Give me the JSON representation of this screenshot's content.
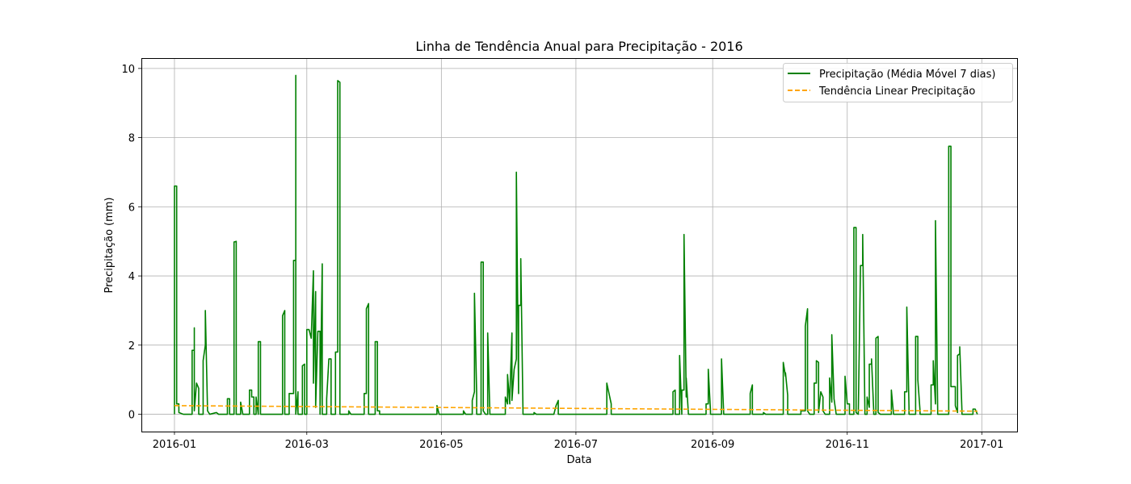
{
  "chart_data": {
    "type": "line",
    "title": "Linha de Tendência Anual para Precipitação - 2016",
    "xlabel": "Data",
    "ylabel": "Precipitação (mm)",
    "xlim": [
      "2015-12-17",
      "2017-01-17"
    ],
    "ylim": [
      -0.5,
      10.3
    ],
    "grid": true,
    "legend_position": "top-right",
    "x_ticks": [
      "2016-01-01",
      "2016-03-01",
      "2016-05-01",
      "2016-07-01",
      "2016-09-01",
      "2016-11-01",
      "2017-01-01"
    ],
    "x_tick_labels": [
      "2016-01",
      "2016-03",
      "2016-05",
      "2016-07",
      "2016-09",
      "2016-11",
      "2017-01"
    ],
    "y_ticks": [
      0,
      2,
      4,
      6,
      8,
      10
    ],
    "y_tick_labels": [
      "0",
      "2",
      "4",
      "6",
      "8",
      "10"
    ],
    "series": [
      {
        "name": "Precipitação (Média Móvel 7 dias)",
        "color": "#008000",
        "style": "solid",
        "points": [
          [
            "2016-01-01",
            0
          ],
          [
            "2016-01-01",
            6.6
          ],
          [
            "2016-01-02",
            6.6
          ],
          [
            "2016-01-02",
            0.3
          ],
          [
            "2016-01-03",
            0.3
          ],
          [
            "2016-01-03",
            0.05
          ],
          [
            "2016-01-05",
            0
          ],
          [
            "2016-01-09",
            0
          ],
          [
            "2016-01-09",
            1.85
          ],
          [
            "2016-01-10",
            1.85
          ],
          [
            "2016-01-10",
            2.5
          ],
          [
            "2016-01-10",
            0.1
          ],
          [
            "2016-01-11",
            0.9
          ],
          [
            "2016-01-12",
            0.75
          ],
          [
            "2016-01-12",
            0
          ],
          [
            "2016-01-14",
            0
          ],
          [
            "2016-01-14",
            1.55
          ],
          [
            "2016-01-15",
            2.0
          ],
          [
            "2016-01-15",
            3.0
          ],
          [
            "2016-01-16",
            0.1
          ],
          [
            "2016-01-17",
            0
          ],
          [
            "2016-01-20",
            0.05
          ],
          [
            "2016-01-21",
            0
          ],
          [
            "2016-01-25",
            0
          ],
          [
            "2016-01-25",
            0.45
          ],
          [
            "2016-01-26",
            0.45
          ],
          [
            "2016-01-26",
            0
          ],
          [
            "2016-01-28",
            0
          ],
          [
            "2016-01-28",
            4.98
          ],
          [
            "2016-01-29",
            5.0
          ],
          [
            "2016-01-29",
            0
          ],
          [
            "2016-01-31",
            0
          ],
          [
            "2016-01-31",
            0.35
          ],
          [
            "2016-02-01",
            0
          ],
          [
            "2016-02-04",
            0
          ],
          [
            "2016-02-04",
            0.7
          ],
          [
            "2016-02-05",
            0.7
          ],
          [
            "2016-02-05",
            0.5
          ],
          [
            "2016-02-06",
            0.5
          ],
          [
            "2016-02-06",
            0
          ],
          [
            "2016-02-07",
            0
          ],
          [
            "2016-02-07",
            0.5
          ],
          [
            "2016-02-08",
            0
          ],
          [
            "2016-02-08",
            2.1
          ],
          [
            "2016-02-09",
            2.1
          ],
          [
            "2016-02-09",
            0
          ],
          [
            "2016-02-19",
            0
          ],
          [
            "2016-02-19",
            2.85
          ],
          [
            "2016-02-20",
            3.0
          ],
          [
            "2016-02-20",
            0
          ],
          [
            "2016-02-22",
            0
          ],
          [
            "2016-02-22",
            0.6
          ],
          [
            "2016-02-24",
            0.6
          ],
          [
            "2016-02-24",
            4.45
          ],
          [
            "2016-02-25",
            4.45
          ],
          [
            "2016-02-25",
            9.8
          ],
          [
            "2016-02-25",
            0
          ],
          [
            "2016-02-26",
            0.65
          ],
          [
            "2016-02-26",
            0
          ],
          [
            "2016-02-28",
            0
          ],
          [
            "2016-02-28",
            1.4
          ],
          [
            "2016-02-29",
            1.45
          ],
          [
            "2016-02-29",
            0
          ],
          [
            "2016-03-01",
            0
          ],
          [
            "2016-03-01",
            2.45
          ],
          [
            "2016-03-02",
            2.45
          ],
          [
            "2016-03-03",
            2.2
          ],
          [
            "2016-03-04",
            4.15
          ],
          [
            "2016-03-04",
            0.9
          ],
          [
            "2016-03-05",
            3.55
          ],
          [
            "2016-03-05",
            0.2
          ],
          [
            "2016-03-06",
            2.4
          ],
          [
            "2016-03-07",
            2.4
          ],
          [
            "2016-03-07",
            0
          ],
          [
            "2016-03-08",
            4.35
          ],
          [
            "2016-03-08",
            0
          ],
          [
            "2016-03-10",
            0
          ],
          [
            "2016-03-10",
            0.45
          ],
          [
            "2016-03-11",
            1.6
          ],
          [
            "2016-03-12",
            1.6
          ],
          [
            "2016-03-12",
            0
          ],
          [
            "2016-03-14",
            0
          ],
          [
            "2016-03-14",
            1.8
          ],
          [
            "2016-03-15",
            1.8
          ],
          [
            "2016-03-15",
            9.65
          ],
          [
            "2016-03-16",
            9.6
          ],
          [
            "2016-03-16",
            0
          ],
          [
            "2016-03-20",
            0
          ],
          [
            "2016-03-20",
            0.1
          ],
          [
            "2016-03-21",
            0
          ],
          [
            "2016-03-27",
            0
          ],
          [
            "2016-03-27",
            0.6
          ],
          [
            "2016-03-28",
            0.6
          ],
          [
            "2016-03-28",
            3.05
          ],
          [
            "2016-03-29",
            3.2
          ],
          [
            "2016-03-29",
            0
          ],
          [
            "2016-04-01",
            0
          ],
          [
            "2016-04-01",
            2.1
          ],
          [
            "2016-04-02",
            2.1
          ],
          [
            "2016-04-02",
            0.1
          ],
          [
            "2016-04-03",
            0.1
          ],
          [
            "2016-04-03",
            0
          ],
          [
            "2016-04-29",
            0
          ],
          [
            "2016-04-29",
            0.25
          ],
          [
            "2016-04-30",
            0
          ],
          [
            "2016-05-11",
            0
          ],
          [
            "2016-05-11",
            0.1
          ],
          [
            "2016-05-12",
            0
          ],
          [
            "2016-05-15",
            0
          ],
          [
            "2016-05-15",
            0.4
          ],
          [
            "2016-05-16",
            0.65
          ],
          [
            "2016-05-16",
            3.5
          ],
          [
            "2016-05-17",
            0.6
          ],
          [
            "2016-05-17",
            0
          ],
          [
            "2016-05-19",
            0
          ],
          [
            "2016-05-19",
            4.4
          ],
          [
            "2016-05-20",
            4.4
          ],
          [
            "2016-05-20",
            0.1
          ],
          [
            "2016-05-21",
            0
          ],
          [
            "2016-05-22",
            0
          ],
          [
            "2016-05-22",
            2.35
          ],
          [
            "2016-05-23",
            0
          ],
          [
            "2016-05-30",
            0
          ],
          [
            "2016-05-30",
            0.5
          ],
          [
            "2016-05-31",
            0.3
          ],
          [
            "2016-05-31",
            1.15
          ],
          [
            "2016-06-01",
            0.3
          ],
          [
            "2016-06-01",
            0.45
          ],
          [
            "2016-06-02",
            2.35
          ],
          [
            "2016-06-02",
            0.4
          ],
          [
            "2016-06-03",
            1.3
          ],
          [
            "2016-06-04",
            1.6
          ],
          [
            "2016-06-04",
            7.0
          ],
          [
            "2016-06-05",
            0.6
          ],
          [
            "2016-06-05",
            3.15
          ],
          [
            "2016-06-06",
            3.15
          ],
          [
            "2016-06-06",
            4.5
          ],
          [
            "2016-06-07",
            0.1
          ],
          [
            "2016-06-07",
            0
          ],
          [
            "2016-06-12",
            0
          ],
          [
            "2016-06-12",
            0.05
          ],
          [
            "2016-06-13",
            0
          ],
          [
            "2016-06-21",
            0
          ],
          [
            "2016-06-22",
            0.25
          ],
          [
            "2016-06-23",
            0.4
          ],
          [
            "2016-06-23",
            0
          ],
          [
            "2016-07-15",
            0
          ],
          [
            "2016-07-15",
            0.9
          ],
          [
            "2016-07-16",
            0.6
          ],
          [
            "2016-07-17",
            0.3
          ],
          [
            "2016-07-17",
            0
          ],
          [
            "2016-08-10",
            0
          ],
          [
            "2016-08-14",
            0
          ],
          [
            "2016-08-14",
            0.65
          ],
          [
            "2016-08-15",
            0.7
          ],
          [
            "2016-08-15",
            0
          ],
          [
            "2016-08-17",
            0
          ],
          [
            "2016-08-17",
            1.7
          ],
          [
            "2016-08-18",
            0
          ],
          [
            "2016-08-18",
            0.7
          ],
          [
            "2016-08-19",
            0.7
          ],
          [
            "2016-08-19",
            5.2
          ],
          [
            "2016-08-20",
            0.5
          ],
          [
            "2016-08-20",
            1.05
          ],
          [
            "2016-08-21",
            0
          ],
          [
            "2016-08-29",
            0
          ],
          [
            "2016-08-29",
            0.3
          ],
          [
            "2016-08-30",
            0.3
          ],
          [
            "2016-08-30",
            1.3
          ],
          [
            "2016-08-31",
            0.1
          ],
          [
            "2016-08-31",
            0
          ],
          [
            "2016-09-05",
            0
          ],
          [
            "2016-09-05",
            1.6
          ],
          [
            "2016-09-06",
            0
          ],
          [
            "2016-09-18",
            0
          ],
          [
            "2016-09-18",
            0.6
          ],
          [
            "2016-09-19",
            0.85
          ],
          [
            "2016-09-19",
            0
          ],
          [
            "2016-09-24",
            0
          ],
          [
            "2016-09-24",
            0.05
          ],
          [
            "2016-09-25",
            0
          ],
          [
            "2016-10-03",
            0
          ],
          [
            "2016-10-03",
            1.5
          ],
          [
            "2016-10-04",
            1.1
          ],
          [
            "2016-10-04",
            1.2
          ],
          [
            "2016-10-05",
            0.55
          ],
          [
            "2016-10-05",
            0
          ],
          [
            "2016-10-11",
            0
          ],
          [
            "2016-10-11",
            0.1
          ],
          [
            "2016-10-13",
            0.1
          ],
          [
            "2016-10-13",
            2.55
          ],
          [
            "2016-10-14",
            3.05
          ],
          [
            "2016-10-14",
            0.1
          ],
          [
            "2016-10-15",
            0
          ],
          [
            "2016-10-17",
            0
          ],
          [
            "2016-10-17",
            0.9
          ],
          [
            "2016-10-18",
            0.9
          ],
          [
            "2016-10-18",
            1.55
          ],
          [
            "2016-10-19",
            1.5
          ],
          [
            "2016-10-19",
            0.05
          ],
          [
            "2016-10-20",
            0.65
          ],
          [
            "2016-10-21",
            0.5
          ],
          [
            "2016-10-21",
            0.1
          ],
          [
            "2016-10-22",
            0
          ],
          [
            "2016-10-24",
            0
          ],
          [
            "2016-10-24",
            1.05
          ],
          [
            "2016-10-25",
            0.35
          ],
          [
            "2016-10-25",
            2.3
          ],
          [
            "2016-10-26",
            0.5
          ],
          [
            "2016-10-26",
            0.45
          ],
          [
            "2016-10-27",
            0
          ],
          [
            "2016-10-31",
            0
          ],
          [
            "2016-10-31",
            1.1
          ],
          [
            "2016-11-01",
            0.3
          ],
          [
            "2016-11-02",
            0.3
          ],
          [
            "2016-11-02",
            0
          ],
          [
            "2016-11-04",
            0
          ],
          [
            "2016-11-04",
            5.4
          ],
          [
            "2016-11-05",
            5.4
          ],
          [
            "2016-11-05",
            0.05
          ],
          [
            "2016-11-06",
            0
          ],
          [
            "2016-11-07",
            4.3
          ],
          [
            "2016-11-08",
            4.3
          ],
          [
            "2016-11-08",
            5.2
          ],
          [
            "2016-11-09",
            0.1
          ],
          [
            "2016-11-09",
            0
          ],
          [
            "2016-11-10",
            0
          ],
          [
            "2016-11-10",
            0.5
          ],
          [
            "2016-11-11",
            0.2
          ],
          [
            "2016-11-11",
            1.45
          ],
          [
            "2016-11-12",
            1.45
          ],
          [
            "2016-11-12",
            1.6
          ],
          [
            "2016-11-13",
            0.1
          ],
          [
            "2016-11-13",
            0
          ],
          [
            "2016-11-14",
            0
          ],
          [
            "2016-11-14",
            2.2
          ],
          [
            "2016-11-15",
            2.25
          ],
          [
            "2016-11-15",
            0.05
          ],
          [
            "2016-11-16",
            0
          ],
          [
            "2016-11-21",
            0
          ],
          [
            "2016-11-21",
            0.7
          ],
          [
            "2016-11-22",
            0
          ],
          [
            "2016-11-27",
            0
          ],
          [
            "2016-11-27",
            0.65
          ],
          [
            "2016-11-28",
            0.65
          ],
          [
            "2016-11-28",
            3.1
          ],
          [
            "2016-11-29",
            0.2
          ],
          [
            "2016-11-29",
            0
          ],
          [
            "2016-12-02",
            0
          ],
          [
            "2016-12-02",
            2.25
          ],
          [
            "2016-12-03",
            2.25
          ],
          [
            "2016-12-03",
            1.0
          ],
          [
            "2016-12-04",
            0.1
          ],
          [
            "2016-12-04",
            0
          ],
          [
            "2016-12-09",
            0
          ],
          [
            "2016-12-09",
            0.85
          ],
          [
            "2016-12-10",
            0.85
          ],
          [
            "2016-12-10",
            1.55
          ],
          [
            "2016-12-11",
            0.3
          ],
          [
            "2016-12-11",
            5.6
          ],
          [
            "2016-12-12",
            0.1
          ],
          [
            "2016-12-12",
            0
          ],
          [
            "2016-12-17",
            0
          ],
          [
            "2016-12-17",
            7.75
          ],
          [
            "2016-12-18",
            7.75
          ],
          [
            "2016-12-18",
            0.8
          ],
          [
            "2016-12-20",
            0.8
          ],
          [
            "2016-12-20",
            0.25
          ],
          [
            "2016-12-21",
            0.05
          ],
          [
            "2016-12-21",
            1.7
          ],
          [
            "2016-12-22",
            1.75
          ],
          [
            "2016-12-22",
            1.95
          ],
          [
            "2016-12-23",
            0.1
          ],
          [
            "2016-12-23",
            0
          ],
          [
            "2016-12-28",
            0
          ],
          [
            "2016-12-28",
            0.15
          ],
          [
            "2016-12-29",
            0.15
          ],
          [
            "2016-12-30",
            0
          ]
        ]
      },
      {
        "name": "Tendência Linear Precipitação",
        "color": "#FFA500",
        "style": "dashed",
        "points": [
          [
            "2016-01-01",
            0.25
          ],
          [
            "2016-12-30",
            0.09
          ]
        ]
      }
    ]
  }
}
